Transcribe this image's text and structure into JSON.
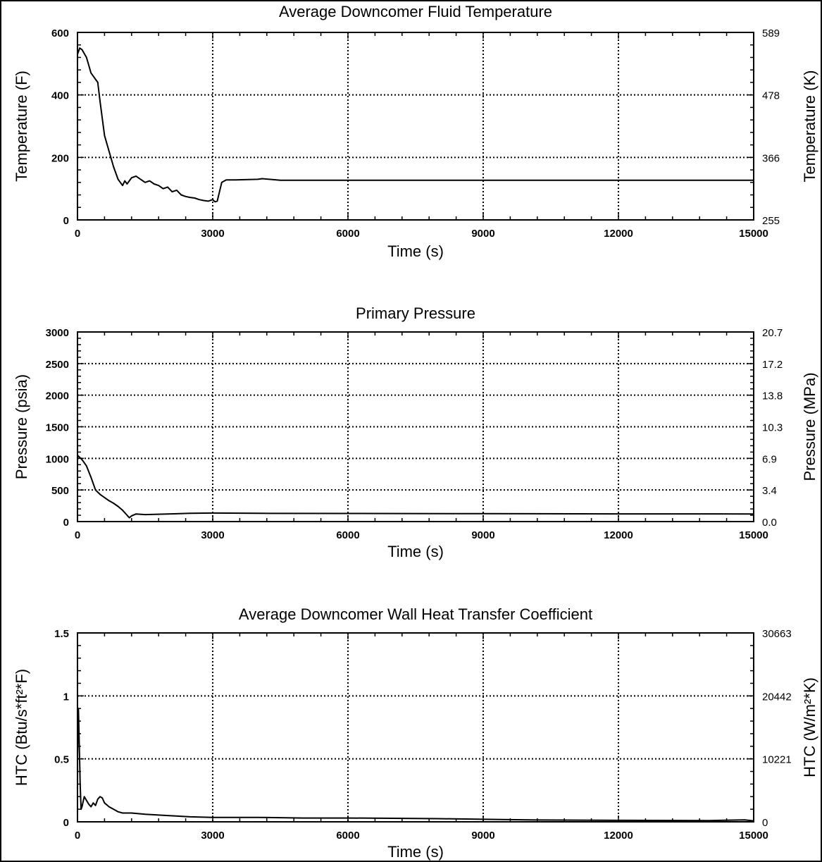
{
  "charts": [
    {
      "type": "line",
      "title": "Average Downcomer Fluid Temperature",
      "xlabel": "Time (s)",
      "ylabel": "Temperature (F)",
      "ylabel_right": "Temperature (K)",
      "xlim": [
        0,
        15000
      ],
      "ylim": [
        0,
        600
      ],
      "x_ticks": [
        "0",
        "3000",
        "6000",
        "9000",
        "12000",
        "15000"
      ],
      "y_ticks": [
        "0",
        "200",
        "400",
        "600"
      ],
      "y_right_ticks": [
        "255",
        "366",
        "478",
        "589"
      ],
      "grid": true,
      "x": [
        0,
        50,
        100,
        200,
        300,
        400,
        450,
        500,
        600,
        700,
        800,
        900,
        1000,
        1050,
        1100,
        1200,
        1300,
        1400,
        1500,
        1600,
        1700,
        1800,
        1900,
        2000,
        2100,
        2200,
        2300,
        2400,
        2500,
        2600,
        2700,
        2800,
        2900,
        3000,
        3050,
        3100,
        3200,
        3300,
        3500,
        4000,
        4100,
        4500,
        5000,
        6000,
        8000,
        10000,
        12000,
        14000,
        15000
      ],
      "values": [
        530,
        550,
        545,
        520,
        470,
        450,
        440,
        380,
        270,
        220,
        170,
        130,
        110,
        125,
        115,
        135,
        140,
        130,
        120,
        125,
        115,
        110,
        100,
        105,
        90,
        95,
        80,
        75,
        72,
        70,
        65,
        62,
        60,
        65,
        58,
        60,
        120,
        128,
        128,
        130,
        132,
        127,
        127,
        127,
        127,
        127,
        127,
        127,
        127
      ]
    },
    {
      "type": "line",
      "title": "Primary Pressure",
      "xlabel": "Time (s)",
      "ylabel": "Pressure (psia)",
      "ylabel_right": "Pressure (MPa)",
      "xlim": [
        0,
        15000
      ],
      "ylim": [
        0,
        3000
      ],
      "x_ticks": [
        "0",
        "3000",
        "6000",
        "9000",
        "12000",
        "15000"
      ],
      "y_ticks": [
        "0",
        "500",
        "1000",
        "1500",
        "2000",
        "2500",
        "3000"
      ],
      "y_right_ticks": [
        "0.0",
        "3.4",
        "6.9",
        "10.3",
        "13.8",
        "17.2",
        "20.7"
      ],
      "grid": true,
      "x": [
        0,
        100,
        200,
        300,
        400,
        500,
        600,
        700,
        800,
        900,
        1000,
        1100,
        1150,
        1200,
        1300,
        1500,
        2000,
        2500,
        3000,
        4000,
        6000,
        9000,
        12000,
        15000
      ],
      "values": [
        1050,
        980,
        880,
        700,
        500,
        430,
        380,
        330,
        290,
        240,
        180,
        100,
        60,
        90,
        120,
        110,
        120,
        130,
        135,
        130,
        128,
        125,
        122,
        120
      ]
    },
    {
      "type": "line",
      "title": "Average Downcomer Wall Heat Transfer Coefficient",
      "xlabel": "Time (s)",
      "ylabel": "HTC (Btu/s*ft²*F)",
      "ylabel_right": "HTC (W/m²*K)",
      "xlim": [
        0,
        15000
      ],
      "ylim": [
        0,
        1.5
      ],
      "x_ticks": [
        "0",
        "3000",
        "6000",
        "9000",
        "12000",
        "15000"
      ],
      "y_ticks": [
        "0",
        "0.5",
        "1",
        "1.5"
      ],
      "y_right_ticks": [
        "0",
        "10221",
        "20442",
        "30663"
      ],
      "grid": true,
      "x": [
        0,
        20,
        40,
        60,
        80,
        100,
        150,
        200,
        250,
        300,
        350,
        400,
        450,
        500,
        550,
        600,
        700,
        800,
        900,
        1000,
        1200,
        1500,
        2000,
        2500,
        3000,
        4000,
        5000,
        6000,
        7000,
        8000,
        9000,
        10000,
        12000,
        14000,
        14800,
        15000
      ],
      "values": [
        0.5,
        0.9,
        0.6,
        0.3,
        0.1,
        0.12,
        0.2,
        0.17,
        0.14,
        0.12,
        0.15,
        0.13,
        0.18,
        0.2,
        0.19,
        0.15,
        0.12,
        0.1,
        0.08,
        0.07,
        0.07,
        0.06,
        0.05,
        0.04,
        0.035,
        0.035,
        0.03,
        0.03,
        0.028,
        0.025,
        0.02,
        0.015,
        0.012,
        0.01,
        0.015,
        0.008
      ]
    }
  ]
}
